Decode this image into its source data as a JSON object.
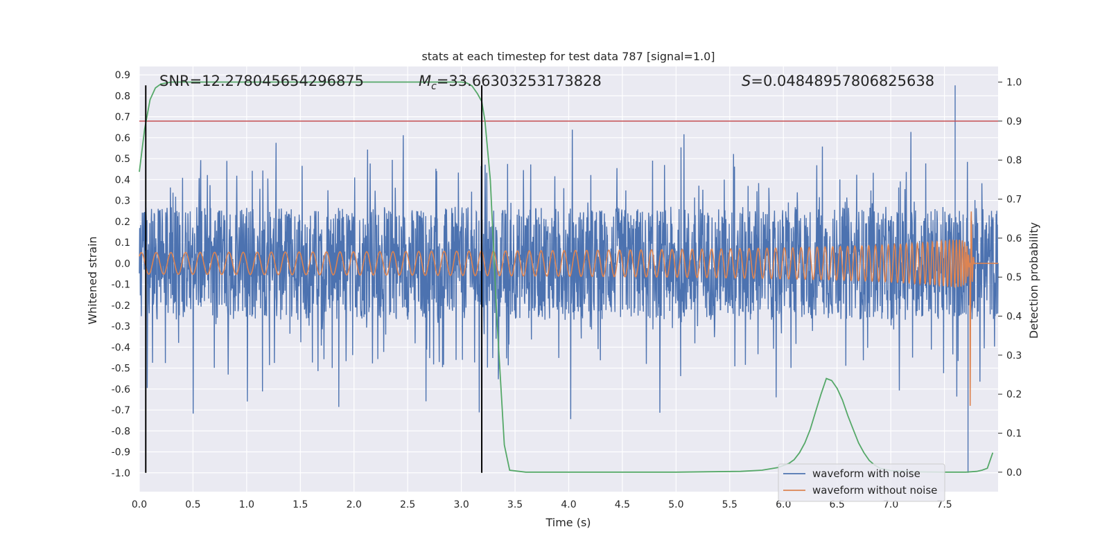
{
  "chart_data": {
    "type": "line",
    "title": "stats at each timestep for test data 787 [signal=1.0]",
    "xlabel": "Time (s)",
    "ylabel": "Whitened strain",
    "ylabel_right": "Detection probability",
    "xlim": [
      0.0,
      8.0
    ],
    "ylim": [
      -1.09,
      0.94
    ],
    "ylim_right": [
      -0.05,
      1.04
    ],
    "x_ticks": [
      "0.0",
      "0.5",
      "1.0",
      "1.5",
      "2.0",
      "2.5",
      "3.0",
      "3.5",
      "4.0",
      "4.5",
      "5.0",
      "5.5",
      "6.0",
      "6.5",
      "7.0",
      "7.5"
    ],
    "y_ticks": [
      "0.9",
      "0.8",
      "0.7",
      "0.6",
      "0.5",
      "0.4",
      "0.3",
      "0.2",
      "0.1",
      "0.0",
      "-0.1",
      "-0.2",
      "-0.3",
      "-0.4",
      "-0.5",
      "-0.6",
      "-0.7",
      "-0.8",
      "-0.9",
      "-1.0"
    ],
    "y_ticks_right": [
      "1.0",
      "0.9",
      "0.8",
      "0.7",
      "0.6",
      "0.5",
      "0.4",
      "0.3",
      "0.2",
      "0.1",
      "0.0"
    ],
    "annotations": {
      "snr": "SNR=12.278045654296875",
      "mc_symbol": "M",
      "mc_sub": "c",
      "mc_value": "=33.66303253173828",
      "s_symbol": "S",
      "s_value": "=0.04848957806825638"
    },
    "threshold_right": 0.9,
    "vlines_x": [
      0.06,
      3.19
    ],
    "vline_range": [
      -1.0,
      0.85
    ],
    "series": [
      {
        "name": "waveform with noise",
        "color": "#4c72b0",
        "axis": "left",
        "kind": "noise",
        "typical_amplitude": 0.27,
        "spike_max": 0.65,
        "spike_min": -0.75,
        "peak_time": 7.6,
        "peak_value": 0.85,
        "min_time": 7.72,
        "min_value": -1.0
      },
      {
        "name": "waveform without noise",
        "color": "#dd8452",
        "axis": "left",
        "kind": "chirp",
        "merger_time": 7.74,
        "merger_amplitude": 0.76,
        "merger_min": -0.68
      },
      {
        "name": "detection probability",
        "color": "#55a868",
        "axis": "right",
        "kind": "line",
        "x": [
          0.0,
          0.05,
          0.1,
          0.15,
          0.2,
          0.25,
          0.3,
          0.35,
          0.5,
          1.0,
          2.0,
          3.0,
          3.05,
          3.1,
          3.15,
          3.19,
          3.22,
          3.27,
          3.33,
          3.4,
          3.45,
          3.6,
          4.0,
          5.0,
          5.6,
          5.8,
          5.95,
          6.05,
          6.1,
          6.15,
          6.2,
          6.25,
          6.3,
          6.35,
          6.4,
          6.45,
          6.5,
          6.55,
          6.6,
          6.65,
          6.7,
          6.75,
          6.8,
          6.85,
          6.9,
          7.0,
          7.2,
          7.5,
          7.6,
          7.7,
          7.8,
          7.85,
          7.9,
          7.95
        ],
        "values": [
          0.77,
          0.88,
          0.955,
          0.985,
          0.995,
          0.998,
          1.0,
          1.0,
          1.0,
          1.0,
          1.0,
          1.0,
          0.998,
          0.99,
          0.97,
          0.95,
          0.9,
          0.75,
          0.4,
          0.07,
          0.005,
          0.0,
          0.0,
          0.0,
          0.002,
          0.005,
          0.012,
          0.022,
          0.032,
          0.05,
          0.075,
          0.11,
          0.155,
          0.2,
          0.24,
          0.235,
          0.215,
          0.185,
          0.145,
          0.11,
          0.075,
          0.05,
          0.03,
          0.018,
          0.01,
          0.004,
          0.001,
          0.0,
          0.0,
          0.0,
          0.002,
          0.005,
          0.01,
          0.05
        ]
      }
    ],
    "legend": {
      "position": "lower-right",
      "entries": [
        "waveform with noise",
        "waveform without noise"
      ]
    },
    "grid": true
  }
}
